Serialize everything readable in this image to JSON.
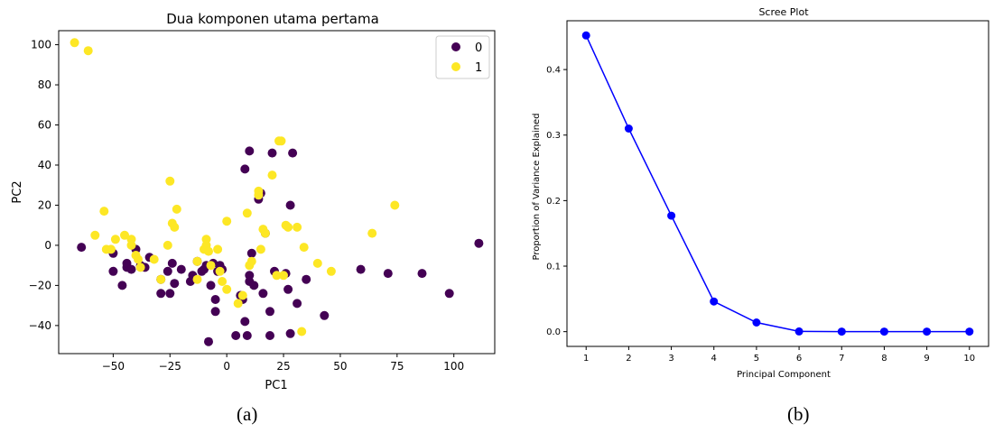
{
  "captions": {
    "a": "(a)",
    "b": "(b)"
  },
  "colors": {
    "class0": "#440154",
    "class1": "#fde725",
    "scree": "#0000ff",
    "axis": "#000000"
  },
  "chart_data": [
    {
      "type": "scatter",
      "title": "Dua komponen utama pertama",
      "xlabel": "PC1",
      "ylabel": "PC2",
      "xlim": [
        -74,
        118
      ],
      "ylim": [
        -54,
        107
      ],
      "xticks": [
        -50,
        -25,
        0,
        25,
        50,
        75,
        100
      ],
      "yticks": [
        -40,
        -20,
        0,
        20,
        40,
        60,
        80,
        100
      ],
      "grid": false,
      "legend": "top-right",
      "series": [
        {
          "name": "0",
          "color": "#440154",
          "points": [
            [
              -64,
              -1
            ],
            [
              -50,
              -13
            ],
            [
              -50,
              -4
            ],
            [
              -46,
              -20
            ],
            [
              -44,
              -11
            ],
            [
              -44,
              -9
            ],
            [
              -42,
              -12
            ],
            [
              -40,
              -2
            ],
            [
              -38,
              -10
            ],
            [
              -36,
              -11
            ],
            [
              -34,
              -6
            ],
            [
              -29,
              -24
            ],
            [
              -29,
              -17
            ],
            [
              -26,
              -13
            ],
            [
              -25,
              -24
            ],
            [
              -24,
              -9
            ],
            [
              -23,
              -19
            ],
            [
              -20,
              -12
            ],
            [
              -16,
              -18
            ],
            [
              -15,
              -15
            ],
            [
              -13,
              -8
            ],
            [
              -11,
              -13
            ],
            [
              -10,
              -12
            ],
            [
              -9,
              -10
            ],
            [
              -8,
              -48
            ],
            [
              -7,
              -20
            ],
            [
              -6,
              -9
            ],
            [
              -5,
              -33
            ],
            [
              -5,
              -27
            ],
            [
              -4,
              -13
            ],
            [
              -3,
              -10
            ],
            [
              -2,
              -12
            ],
            [
              4,
              -45
            ],
            [
              6,
              -25
            ],
            [
              7,
              -27
            ],
            [
              8,
              -38
            ],
            [
              8,
              38
            ],
            [
              9,
              -45
            ],
            [
              10,
              47
            ],
            [
              10,
              -15
            ],
            [
              10,
              -18
            ],
            [
              11,
              -4
            ],
            [
              12,
              -20
            ],
            [
              14,
              23
            ],
            [
              15,
              26
            ],
            [
              16,
              -24
            ],
            [
              17,
              6
            ],
            [
              19,
              -45
            ],
            [
              19,
              -33
            ],
            [
              20,
              46
            ],
            [
              21,
              -13
            ],
            [
              26,
              -14
            ],
            [
              27,
              -22
            ],
            [
              28,
              -44
            ],
            [
              28,
              20
            ],
            [
              29,
              46
            ],
            [
              31,
              -29
            ],
            [
              35,
              -17
            ],
            [
              43,
              -35
            ],
            [
              59,
              -12
            ],
            [
              71,
              -14
            ],
            [
              86,
              -14
            ],
            [
              98,
              -24
            ],
            [
              111,
              1
            ]
          ]
        },
        {
          "name": "1",
          "color": "#fde725",
          "points": [
            [
              -67,
              101
            ],
            [
              -61,
              97
            ],
            [
              -58,
              5
            ],
            [
              -54,
              17
            ],
            [
              -53,
              -2
            ],
            [
              -51,
              -2
            ],
            [
              -49,
              3
            ],
            [
              -45,
              5
            ],
            [
              -42,
              3
            ],
            [
              -42,
              0
            ],
            [
              -40,
              -5
            ],
            [
              -39,
              -7
            ],
            [
              -38,
              -11
            ],
            [
              -32,
              -7
            ],
            [
              -29,
              -17
            ],
            [
              -26,
              0
            ],
            [
              -25,
              32
            ],
            [
              -24,
              11
            ],
            [
              -23,
              9
            ],
            [
              -22,
              18
            ],
            [
              -13,
              -8
            ],
            [
              -13,
              -17
            ],
            [
              -10,
              -2
            ],
            [
              -9,
              3
            ],
            [
              -9,
              0
            ],
            [
              -8,
              -3
            ],
            [
              -7,
              -10
            ],
            [
              -4,
              -2
            ],
            [
              -3,
              -13
            ],
            [
              -2,
              -18
            ],
            [
              0,
              12
            ],
            [
              0,
              -22
            ],
            [
              5,
              -29
            ],
            [
              7,
              -25
            ],
            [
              9,
              16
            ],
            [
              10,
              -10
            ],
            [
              11,
              -8
            ],
            [
              14,
              25
            ],
            [
              14,
              27
            ],
            [
              15,
              -2
            ],
            [
              16,
              8
            ],
            [
              17,
              6
            ],
            [
              20,
              35
            ],
            [
              22,
              -15
            ],
            [
              23,
              52
            ],
            [
              24,
              52
            ],
            [
              25,
              -15
            ],
            [
              26,
              10
            ],
            [
              27,
              9
            ],
            [
              31,
              9
            ],
            [
              34,
              -1
            ],
            [
              33,
              -43
            ],
            [
              40,
              -9
            ],
            [
              46,
              -13
            ],
            [
              64,
              6
            ],
            [
              74,
              20
            ]
          ]
        }
      ]
    },
    {
      "type": "line",
      "title": "Scree Plot",
      "xlabel": "Principal Component",
      "ylabel": "Proportion of Variance Explained",
      "x": [
        1,
        2,
        3,
        4,
        5,
        6,
        7,
        8,
        9,
        10
      ],
      "y": [
        0.452,
        0.31,
        0.177,
        0.046,
        0.014,
        0.0003,
        0.0001,
        0.0001,
        0.0001,
        0.0001
      ],
      "xlim": [
        0.55,
        10.45
      ],
      "ylim": [
        -0.0225,
        0.4745
      ],
      "xticks": [
        1,
        2,
        3,
        4,
        5,
        6,
        7,
        8,
        9,
        10
      ],
      "yticks": [
        0.0,
        0.1,
        0.2,
        0.3,
        0.4
      ],
      "grid": false,
      "color": "#0000ff"
    }
  ]
}
